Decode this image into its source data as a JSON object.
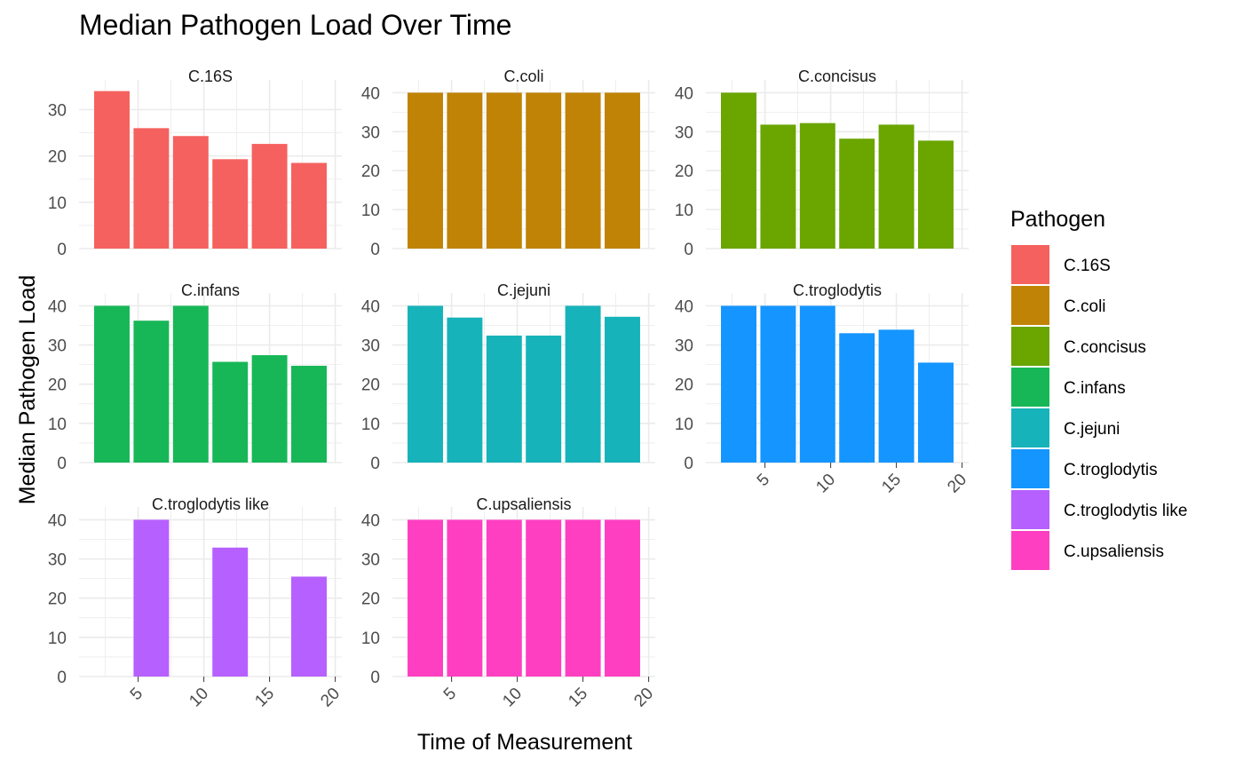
{
  "chart_data": {
    "type": "bar",
    "title": "Median Pathogen Load Over Time",
    "xlabel": "Time of Measurement",
    "ylabel": "Median Pathogen Load",
    "legend_title": "Pathogen",
    "legend_position": "right",
    "grid": true,
    "xlim": [
      0.5,
      20.5
    ],
    "x_ticks": [
      "5",
      "10",
      "15",
      "20"
    ],
    "x_tick_values": [
      5,
      10,
      15,
      20
    ],
    "y_ticks": [
      "0",
      "10",
      "20",
      "30",
      "40"
    ],
    "y_tick_values": [
      0,
      10,
      20,
      30,
      40
    ],
    "x": [
      3,
      6,
      9,
      12,
      15,
      18
    ],
    "panels": [
      {
        "name": "C.16S",
        "color": "#F8766D",
        "ylim": [
          0,
          34.5
        ],
        "values": [
          34,
          26,
          24.3,
          19.3,
          22.6,
          18.5
        ]
      },
      {
        "name": "C.coli",
        "color": "#C49A00",
        "ylim": [
          0,
          41
        ],
        "values": [
          40,
          40,
          40,
          40,
          40,
          40
        ]
      },
      {
        "name": "C.concisus",
        "color": "#53B400",
        "ylim": [
          0,
          41
        ],
        "values": [
          40,
          31.8,
          32.2,
          28.2,
          31.8,
          27.7
        ]
      },
      {
        "name": "C.infans",
        "color": "#00C094",
        "ylim": [
          0,
          41
        ],
        "values": [
          40,
          36.2,
          40,
          25.7,
          27.4,
          24.7
        ]
      },
      {
        "name": "C.jejuni",
        "color": "#00B6EB",
        "ylim": [
          0,
          41
        ],
        "values": [
          40,
          37,
          32.4,
          32.4,
          40,
          37.2
        ]
      },
      {
        "name": "C.troglodytis",
        "color": "#06A4FF",
        "ylim": [
          0,
          41
        ],
        "values": [
          40,
          40,
          40,
          33,
          33.9,
          25.5
        ]
      },
      {
        "name": "C.troglodytis like",
        "color": "#A58AFF",
        "ylim": [
          0,
          41
        ],
        "values": [
          null,
          40,
          null,
          32.9,
          null,
          25.5
        ]
      },
      {
        "name": "C.upsaliensis",
        "color": "#FB61D7",
        "ylim": [
          0,
          41
        ],
        "values": [
          40,
          40,
          40,
          40,
          40,
          40
        ]
      }
    ],
    "legend": [
      {
        "label": "C.16S",
        "color": "#F8766D"
      },
      {
        "label": "C.coli",
        "color": "#C49A00"
      },
      {
        "label": "C.concisus",
        "color": "#6AA500"
      },
      {
        "label": "C.infans",
        "color": "#17B757"
      },
      {
        "label": "C.jejuni",
        "color": "#17B3BA"
      },
      {
        "label": "C.troglodytis",
        "color": "#1495FF"
      },
      {
        "label": "C.troglodytis like",
        "color": "#B660FF"
      },
      {
        "label": "C.upsaliensis",
        "color": "#FF3FC2"
      }
    ],
    "panel_colors": {
      "C.16S": "#F5615E",
      "C.coli": "#C08306",
      "C.concisus": "#6AA500",
      "C.infans": "#17B757",
      "C.jejuni": "#17B3BA",
      "C.troglodytis": "#1495FF",
      "C.troglodytis like": "#B660FF",
      "C.upsaliensis": "#FF3FC2"
    }
  }
}
